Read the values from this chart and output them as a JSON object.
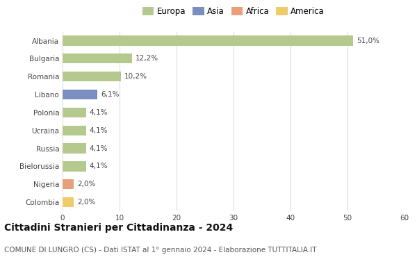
{
  "categories": [
    "Albania",
    "Bulgaria",
    "Romania",
    "Libano",
    "Polonia",
    "Ucraina",
    "Russia",
    "Bielorussia",
    "Nigeria",
    "Colombia"
  ],
  "values": [
    51.0,
    12.2,
    10.2,
    6.1,
    4.1,
    4.1,
    4.1,
    4.1,
    2.0,
    2.0
  ],
  "labels": [
    "51,0%",
    "12,2%",
    "10,2%",
    "6,1%",
    "4,1%",
    "4,1%",
    "4,1%",
    "4,1%",
    "2,0%",
    "2,0%"
  ],
  "bar_colors": [
    "#b5c98e",
    "#b5c98e",
    "#b5c98e",
    "#7a8fc0",
    "#b5c98e",
    "#b5c98e",
    "#b5c98e",
    "#b5c98e",
    "#e8a07a",
    "#f0cb6a"
  ],
  "legend": [
    {
      "label": "Europa",
      "color": "#b5c98e"
    },
    {
      "label": "Asia",
      "color": "#7a8fc0"
    },
    {
      "label": "Africa",
      "color": "#e8a07a"
    },
    {
      "label": "America",
      "color": "#f0cb6a"
    }
  ],
  "xlim": [
    0,
    60
  ],
  "xticks": [
    0,
    10,
    20,
    30,
    40,
    50,
    60
  ],
  "title": "Cittadini Stranieri per Cittadinanza - 2024",
  "subtitle": "COMUNE DI LUNGRO (CS) - Dati ISTAT al 1° gennaio 2024 - Elaborazione TUTTITALIA.IT",
  "title_fontsize": 10,
  "subtitle_fontsize": 7.5,
  "label_fontsize": 7.5,
  "tick_fontsize": 7.5,
  "legend_fontsize": 8.5,
  "bg_color": "#ffffff",
  "grid_color": "#dddddd",
  "bar_height": 0.55
}
